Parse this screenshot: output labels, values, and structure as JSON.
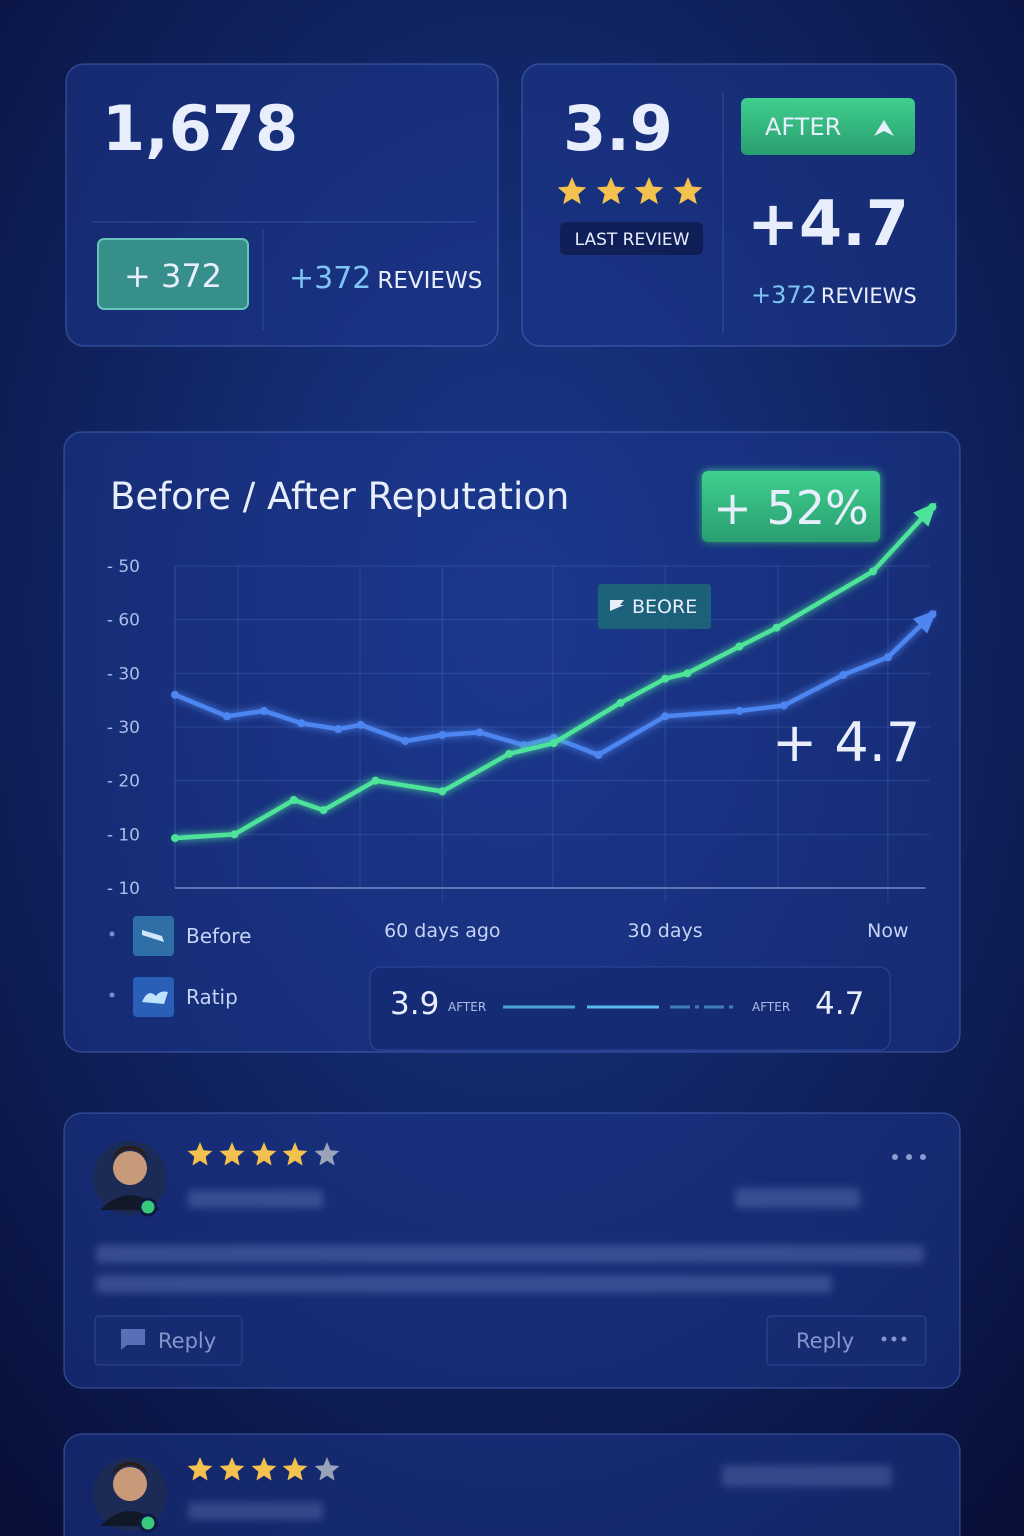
{
  "stats": {
    "total": "1,678",
    "badge": "+ 372",
    "reviews_delta": "+372",
    "reviews_label": "REVIEWS"
  },
  "rating": {
    "before": "3.9",
    "before_label": "LAST REVIEW",
    "after_badge": "AFTER",
    "after": "+4.7",
    "reviews_delta": "+372",
    "reviews_label": "REVIEWS"
  },
  "chart_data": {
    "type": "line",
    "title": "Before / After Reputation",
    "badge": "+ 52%",
    "annotations": [
      "BEORE",
      "+ 4.7"
    ],
    "xlim": [
      -96,
      5
    ],
    "xticks": [
      {
        "value": -60,
        "label": "60 days ago"
      },
      {
        "value": -30,
        "label": "30 days"
      },
      {
        "value": 0,
        "label": "Now"
      }
    ],
    "ylim": [
      0,
      6
    ],
    "yticks": [
      {
        "value": 6,
        "label": "- 50"
      },
      {
        "value": 5,
        "label": "- 60"
      },
      {
        "value": 4,
        "label": "- 30"
      },
      {
        "value": 3,
        "label": "- 30"
      },
      {
        "value": 2,
        "label": "- 20"
      },
      {
        "value": 1,
        "label": "- 10"
      },
      {
        "value": 0,
        "label": "- 10"
      }
    ],
    "grid": true,
    "series": [
      {
        "name": "Before",
        "color": "#4d86f0",
        "x": [
          -96,
          -89,
          -84,
          -79,
          -74,
          -71,
          -65,
          -60,
          -55,
          -49,
          -45,
          -39,
          -30,
          -20,
          -14,
          -6,
          0,
          6
        ],
        "values": [
          3.6,
          3.2,
          3.3,
          3.07,
          2.96,
          3.04,
          2.74,
          2.85,
          2.9,
          2.66,
          2.8,
          2.48,
          3.2,
          3.3,
          3.4,
          3.97,
          4.3,
          5.1
        ]
      },
      {
        "name": "Ratip",
        "color": "#4ee39a",
        "x": [
          -96,
          -88,
          -80,
          -76,
          -69,
          -60,
          -51,
          -45,
          -36,
          -30,
          -27,
          -20,
          -15,
          -2,
          6
        ],
        "values": [
          0.93,
          1.0,
          1.64,
          1.45,
          2.0,
          1.8,
          2.5,
          2.7,
          3.45,
          3.9,
          4.0,
          4.5,
          4.85,
          5.9,
          7.1
        ]
      }
    ],
    "summary": {
      "before": "3.9",
      "before_label": "AFTER",
      "after_label": "AFTER",
      "after": "4.7"
    }
  },
  "reviews": [
    {
      "reply": "Reply",
      "reply_secondary": "Reply"
    }
  ]
}
